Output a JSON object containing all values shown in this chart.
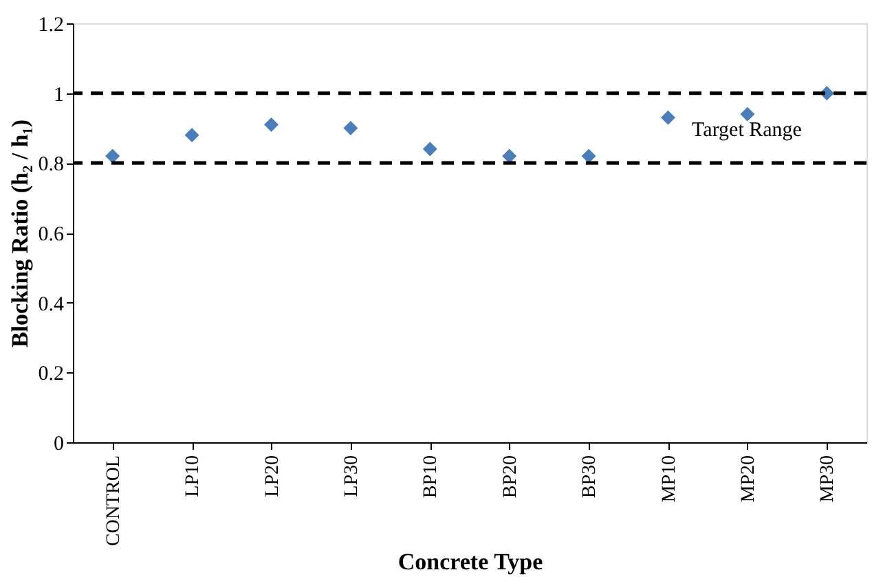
{
  "chart_data": {
    "type": "scatter",
    "xlabel": "Concrete Type",
    "ylabel": "Blocking Ratio (h₂ / h₁)",
    "categories": [
      "CONTROL",
      "LP10",
      "LP20",
      "LP30",
      "BP10",
      "BP20",
      "BP30",
      "MP10",
      "MP20",
      "MP30"
    ],
    "series": [
      {
        "color": "#4a7ebb",
        "values": [
          0.82,
          0.88,
          0.91,
          0.9,
          0.84,
          0.82,
          0.82,
          0.93,
          0.94,
          1.0
        ]
      }
    ],
    "marker": "diamond",
    "ylim": [
      0,
      1.2
    ],
    "yticks": [
      0,
      0.2,
      0.4,
      0.6,
      0.8,
      1,
      1.2
    ],
    "ref_lines": [
      {
        "axis": "y",
        "value": 0.8,
        "color": "#000000",
        "line_style": "dashed"
      },
      {
        "axis": "y",
        "value": 1,
        "color": "#000000",
        "line_style": "dashed"
      }
    ],
    "annotations": [
      "Target Range"
    ],
    "grid": false
  }
}
